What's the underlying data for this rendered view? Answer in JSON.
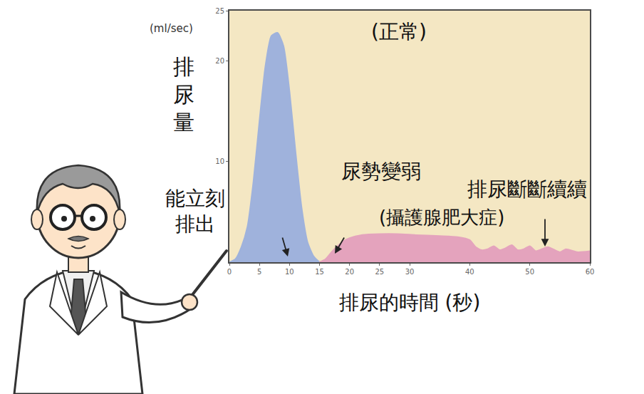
{
  "chart_data": {
    "type": "area",
    "x_label": "排尿的時間 (秒)",
    "y_label": "排尿量",
    "y_unit": "(ml/sec)",
    "annotations": [
      {
        "text": "(正常)"
      },
      {
        "text": "尿勢變弱"
      },
      {
        "text": "(攝護腺肥大症)"
      },
      {
        "text": "排尿斷斷續續"
      },
      {
        "text": "能立刻\n排出"
      }
    ],
    "series": [
      {
        "color": "#9fb2dc",
        "x": [
          0,
          1,
          2,
          3,
          4,
          5,
          6,
          7,
          8,
          9,
          10,
          11,
          12,
          13,
          14,
          15
        ],
        "values": [
          0,
          0.3,
          1.5,
          3.5,
          8,
          14,
          19.5,
          22.5,
          22.8,
          21.5,
          17,
          11,
          5.5,
          2,
          0.6,
          0
        ]
      },
      {
        "color": "#e4a3bd",
        "x": [
          15,
          16,
          17,
          18,
          19,
          20,
          22,
          25,
          28,
          31,
          35,
          38,
          40,
          41,
          42,
          43,
          44,
          45,
          46,
          47,
          48,
          49,
          50,
          51,
          53,
          55,
          56,
          58,
          60
        ],
        "values": [
          0,
          0.3,
          1,
          1.6,
          2.1,
          2.4,
          2.7,
          2.8,
          2.8,
          2.7,
          2.6,
          2.5,
          2.2,
          1.5,
          1.2,
          1.3,
          1.6,
          1.2,
          1.4,
          1.7,
          1.2,
          1.3,
          1.6,
          1.1,
          1.5,
          1,
          1.3,
          1,
          1.1
        ]
      }
    ],
    "xlim": [
      0,
      60
    ],
    "xticks": [
      0,
      5,
      10,
      15,
      20,
      25,
      30,
      40,
      50,
      60
    ],
    "ylim": [
      0,
      25
    ],
    "yticks": [
      10,
      20,
      25
    ],
    "grid": false
  }
}
